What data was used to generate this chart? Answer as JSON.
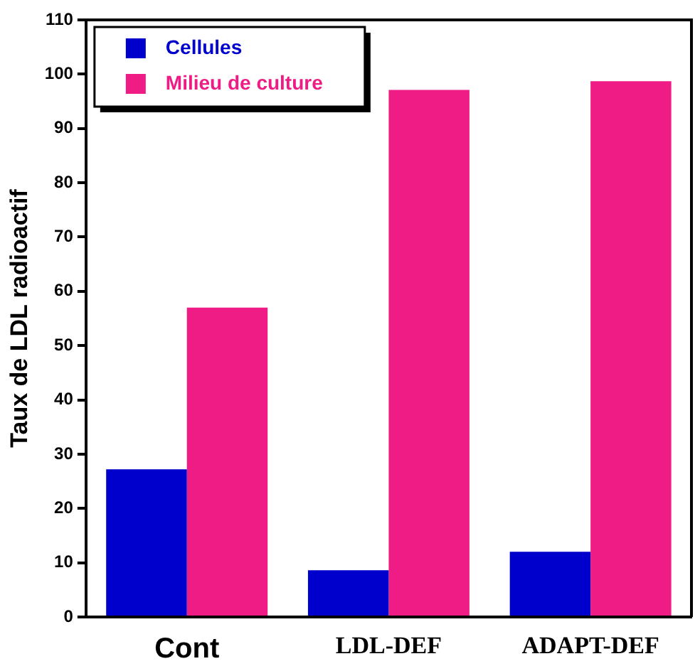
{
  "chart_data": {
    "type": "bar",
    "ylabel": "Taux de LDL radioactif",
    "categories": [
      "Cont",
      "LDL-DEF",
      "ADAPT-DEF"
    ],
    "series": [
      {
        "name": "Cellules",
        "color": "#0000cc",
        "values": [
          27.2,
          8.6,
          12
        ]
      },
      {
        "name": "Milieu de culture",
        "color": "#ee1c84",
        "values": [
          57,
          97.1,
          98.7
        ]
      }
    ],
    "ylim": [
      0,
      110
    ],
    "yticks": [
      0,
      10,
      20,
      30,
      40,
      50,
      60,
      70,
      80,
      90,
      100,
      110
    ],
    "grid": false,
    "legend": "top left"
  }
}
